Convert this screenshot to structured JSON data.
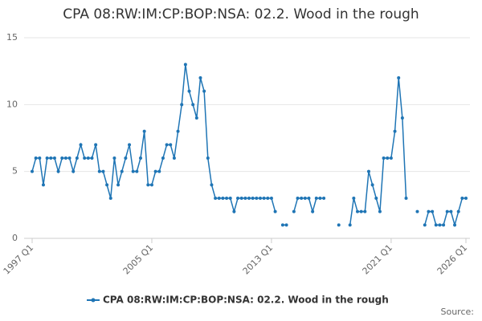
{
  "chart_data": {
    "type": "line",
    "title": "CPA 08:RW:IM:CP:BOP:NSA: 02.2. Wood in the rough",
    "source": "Source:",
    "categories": [
      "1997 Q1",
      null,
      null,
      null,
      null,
      null,
      null,
      null,
      null,
      null,
      null,
      null,
      null,
      null,
      null,
      null,
      null,
      null,
      null,
      null,
      null,
      null,
      null,
      null,
      null,
      null,
      null,
      null,
      null,
      null,
      null,
      null,
      "2005 Q1",
      null,
      null,
      null,
      null,
      null,
      null,
      null,
      null,
      null,
      null,
      null,
      null,
      null,
      null,
      null,
      null,
      null,
      null,
      null,
      null,
      null,
      null,
      null,
      null,
      null,
      null,
      null,
      null,
      null,
      null,
      null,
      "2013 Q1",
      null,
      null,
      null,
      null,
      null,
      null,
      null,
      null,
      null,
      null,
      null,
      null,
      null,
      null,
      null,
      null,
      null,
      null,
      null,
      null,
      null,
      null,
      null,
      null,
      null,
      null,
      null,
      null,
      null,
      null,
      null,
      "2021 Q1",
      null,
      null,
      null,
      null,
      null,
      null,
      null,
      null,
      null,
      null,
      null,
      null,
      null,
      null,
      null,
      null,
      null,
      null,
      null,
      "2026 Q1"
    ],
    "series": [
      {
        "name": "CPA 08:RW:IM:CP:BOP:NSA: 02.2. Wood in the rough",
        "color": "#1f75b5",
        "values": [
          5,
          6,
          6,
          4,
          6,
          6,
          6,
          5,
          6,
          6,
          6,
          5,
          6,
          7,
          6,
          6,
          6,
          7,
          5,
          5,
          4,
          3,
          6,
          4,
          5,
          6,
          7,
          5,
          5,
          6,
          8,
          4,
          4,
          5,
          5,
          6,
          7,
          7,
          6,
          8,
          10,
          13,
          11,
          10,
          9,
          12,
          11,
          6,
          4,
          3,
          3,
          3,
          3,
          3,
          2,
          3,
          3,
          3,
          3,
          3,
          3,
          3,
          3,
          3,
          3,
          2,
          null,
          1,
          1,
          null,
          2,
          3,
          3,
          3,
          3,
          2,
          3,
          3,
          3,
          null,
          null,
          null,
          1,
          null,
          null,
          1,
          3,
          2,
          2,
          2,
          5,
          4,
          3,
          2,
          6,
          6,
          6,
          8,
          12,
          9,
          3,
          null,
          null,
          2,
          null,
          1,
          2,
          2,
          1,
          1,
          1,
          2,
          2,
          1,
          2,
          3,
          3
        ]
      }
    ],
    "ylim": [
      0,
      15
    ],
    "yticks": [
      0,
      5,
      10,
      15
    ],
    "grid": true,
    "legend": "bottom"
  }
}
